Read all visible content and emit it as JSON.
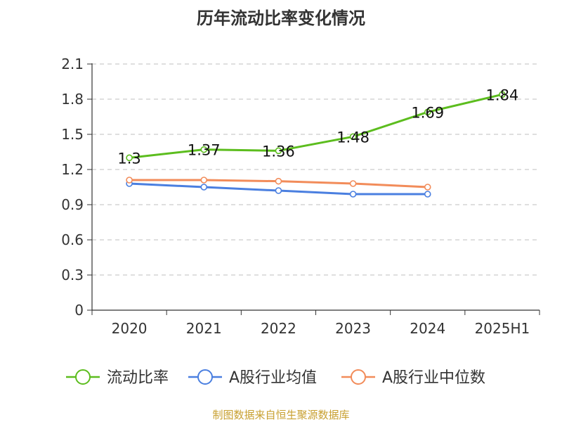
{
  "page": {
    "title": "历年流动比率变化情况",
    "source_note": "制图数据来自恒生聚源数据库"
  },
  "chart_data": {
    "type": "line",
    "title": "历年流动比率变化情况",
    "xlabel": "",
    "ylabel": "",
    "categories": [
      "2020",
      "2021",
      "2022",
      "2023",
      "2024",
      "2025H1"
    ],
    "ylim": [
      0,
      2.1
    ],
    "yticks": [
      "0",
      "0.3",
      "0.6",
      "0.9",
      "1.2",
      "1.5",
      "1.8",
      "2.1"
    ],
    "grid": true,
    "legend_position": "bottom",
    "series": [
      {
        "name": "流动比率",
        "color": "#5cbd1e",
        "values": [
          1.3,
          1.37,
          1.36,
          1.48,
          1.69,
          1.84
        ],
        "labels": [
          "1.3",
          "1.37",
          "1.36",
          "1.48",
          "1.69",
          "1.84"
        ]
      },
      {
        "name": "A股行业均值",
        "color": "#4a7fe0",
        "values": [
          1.08,
          1.05,
          1.02,
          0.99,
          0.99,
          null
        ]
      },
      {
        "name": "A股行业中位数",
        "color": "#f28c5a",
        "values": [
          1.11,
          1.11,
          1.1,
          1.08,
          1.05,
          null
        ]
      }
    ]
  }
}
